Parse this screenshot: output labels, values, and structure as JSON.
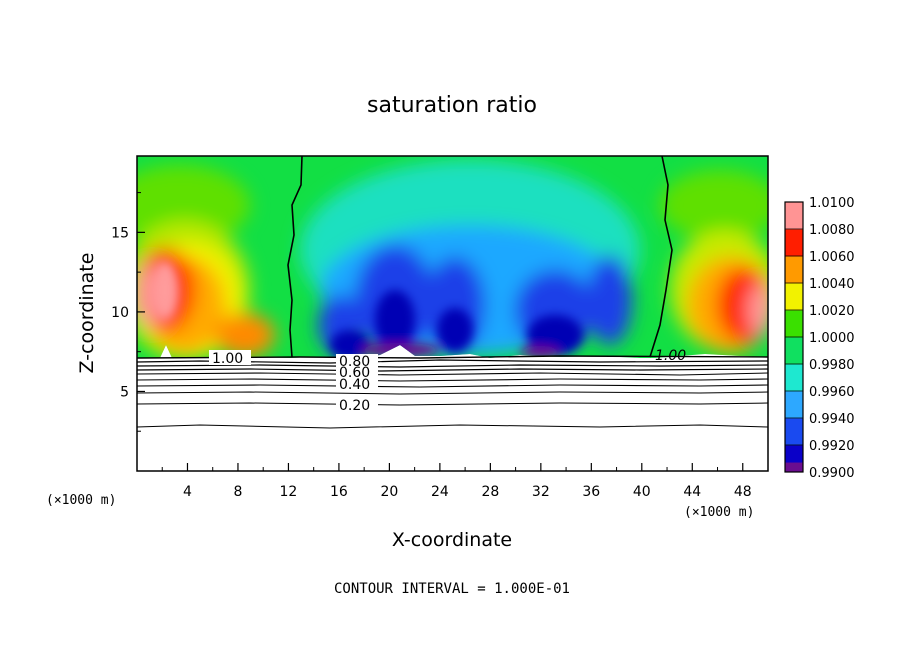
{
  "chart_data": {
    "type": "heatmap",
    "title": "saturation ratio",
    "xlabel": "X-coordinate",
    "ylabel": "Z-coordinate",
    "x_unit": "(×1000 m)",
    "y_unit": "(×1000 m)",
    "xlim": [
      0,
      50
    ],
    "ylim": [
      0,
      19.8
    ],
    "x_ticks": [
      "4",
      "8",
      "12",
      "16",
      "20",
      "24",
      "28",
      "32",
      "36",
      "40",
      "44",
      "48"
    ],
    "y_ticks": [
      "5",
      "10",
      "15"
    ],
    "colorbar": {
      "min": 0.99,
      "max": 1.01,
      "tick_labels": [
        "0.9900",
        "0.9920",
        "0.9940",
        "0.9960",
        "0.9980",
        "1.0000",
        "1.0020",
        "1.0040",
        "1.0060",
        "1.0080",
        "1.0100"
      ],
      "colors": [
        "#6a0d8f",
        "#0a00c8",
        "#1a4af0",
        "#2da8ff",
        "#1ee8d0",
        "#10e060",
        "#3ae000",
        "#f2f200",
        "#ff9a00",
        "#ff1e00",
        "#ff9494"
      ]
    },
    "contour_labels": [
      "1.00",
      "0.80",
      "0.60",
      "0.40",
      "0.20",
      "1.00"
    ],
    "contour_levels_below_cloud": [
      0.2,
      0.4,
      0.6,
      0.8,
      1.0
    ],
    "cloud_base_z": 7.3,
    "note": "CONTOUR INTERVAL = 1.000E-01"
  }
}
